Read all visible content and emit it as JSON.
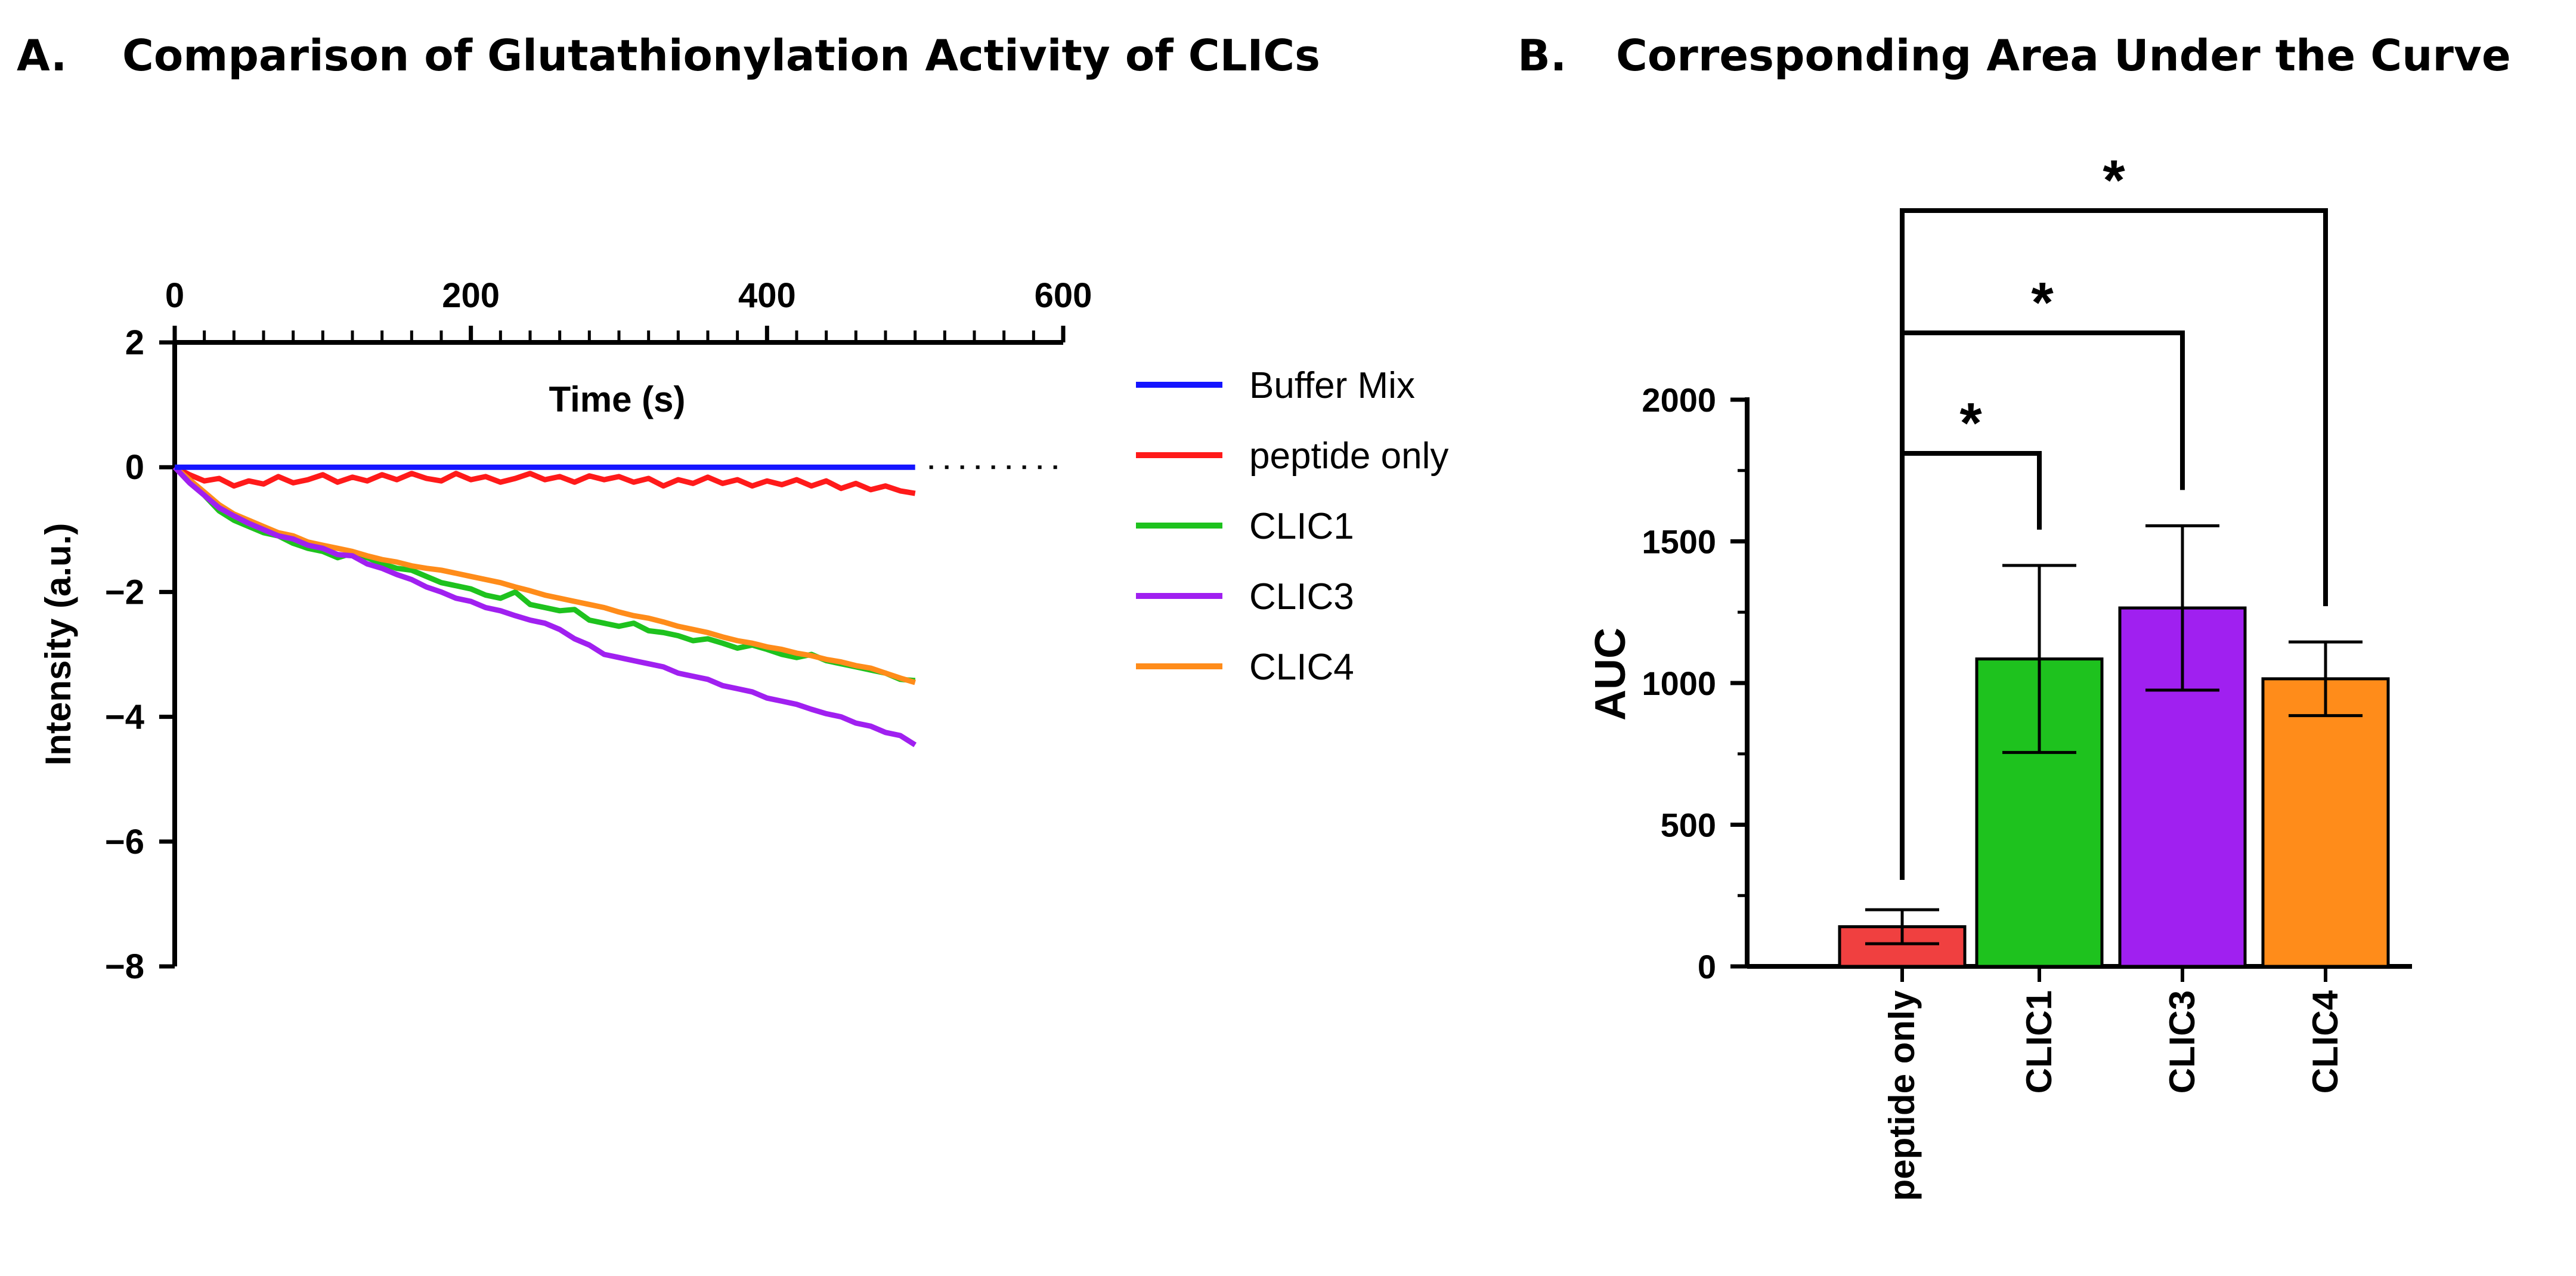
{
  "panels": {
    "a": {
      "letter": "A.",
      "title": "Comparison of Glutathionylation Activity of CLICs"
    },
    "b": {
      "letter": "B.",
      "title": "Corresponding Area Under the Curve"
    }
  },
  "chart_data": [
    {
      "type": "line",
      "title": "Comparison of Glutathionylation Activity of CLICs",
      "xlabel": "Time (s)",
      "ylabel": "Intensity (a.u.)",
      "xlim": [
        0,
        600
      ],
      "ylim": [
        -8,
        2
      ],
      "x_ticks": [
        0,
        200,
        400,
        600
      ],
      "y_ticks": [
        2,
        0,
        -2,
        -4,
        -6,
        -8
      ],
      "x_axis_position": "top",
      "series": [
        {
          "name": "Buffer Mix",
          "color": "#1414ff",
          "points": [
            [
              0,
              0
            ],
            [
              100,
              0
            ],
            [
              200,
              0
            ],
            [
              300,
              0
            ],
            [
              400,
              0
            ],
            [
              500,
              0
            ]
          ]
        },
        {
          "name": "peptide only",
          "color": "#ff1a1a",
          "points": [
            [
              0,
              0
            ],
            [
              10,
              -0.12
            ],
            [
              20,
              -0.22
            ],
            [
              30,
              -0.18
            ],
            [
              40,
              -0.3
            ],
            [
              50,
              -0.22
            ],
            [
              60,
              -0.27
            ],
            [
              70,
              -0.15
            ],
            [
              80,
              -0.25
            ],
            [
              90,
              -0.2
            ],
            [
              100,
              -0.12
            ],
            [
              110,
              -0.24
            ],
            [
              120,
              -0.16
            ],
            [
              130,
              -0.22
            ],
            [
              140,
              -0.12
            ],
            [
              150,
              -0.2
            ],
            [
              160,
              -0.1
            ],
            [
              170,
              -0.18
            ],
            [
              180,
              -0.22
            ],
            [
              190,
              -0.1
            ],
            [
              200,
              -0.2
            ],
            [
              210,
              -0.15
            ],
            [
              220,
              -0.24
            ],
            [
              230,
              -0.18
            ],
            [
              240,
              -0.1
            ],
            [
              250,
              -0.2
            ],
            [
              260,
              -0.15
            ],
            [
              270,
              -0.24
            ],
            [
              280,
              -0.14
            ],
            [
              290,
              -0.2
            ],
            [
              300,
              -0.15
            ],
            [
              310,
              -0.24
            ],
            [
              320,
              -0.18
            ],
            [
              330,
              -0.3
            ],
            [
              340,
              -0.2
            ],
            [
              350,
              -0.26
            ],
            [
              360,
              -0.16
            ],
            [
              370,
              -0.26
            ],
            [
              380,
              -0.2
            ],
            [
              390,
              -0.3
            ],
            [
              400,
              -0.22
            ],
            [
              410,
              -0.28
            ],
            [
              420,
              -0.2
            ],
            [
              430,
              -0.3
            ],
            [
              440,
              -0.22
            ],
            [
              450,
              -0.34
            ],
            [
              460,
              -0.26
            ],
            [
              470,
              -0.36
            ],
            [
              480,
              -0.3
            ],
            [
              490,
              -0.38
            ],
            [
              500,
              -0.42
            ]
          ]
        },
        {
          "name": "CLIC1",
          "color": "#1ec21e",
          "points": [
            [
              0,
              0
            ],
            [
              10,
              -0.2
            ],
            [
              20,
              -0.45
            ],
            [
              30,
              -0.7
            ],
            [
              40,
              -0.85
            ],
            [
              50,
              -0.95
            ],
            [
              60,
              -1.05
            ],
            [
              70,
              -1.1
            ],
            [
              80,
              -1.22
            ],
            [
              90,
              -1.3
            ],
            [
              100,
              -1.35
            ],
            [
              110,
              -1.45
            ],
            [
              120,
              -1.38
            ],
            [
              130,
              -1.45
            ],
            [
              140,
              -1.55
            ],
            [
              150,
              -1.62
            ],
            [
              160,
              -1.65
            ],
            [
              170,
              -1.75
            ],
            [
              180,
              -1.85
            ],
            [
              190,
              -1.9
            ],
            [
              200,
              -1.95
            ],
            [
              210,
              -2.05
            ],
            [
              220,
              -2.1
            ],
            [
              230,
              -2.0
            ],
            [
              240,
              -2.2
            ],
            [
              250,
              -2.25
            ],
            [
              260,
              -2.3
            ],
            [
              270,
              -2.28
            ],
            [
              280,
              -2.45
            ],
            [
              290,
              -2.5
            ],
            [
              300,
              -2.55
            ],
            [
              310,
              -2.5
            ],
            [
              320,
              -2.62
            ],
            [
              330,
              -2.65
            ],
            [
              340,
              -2.7
            ],
            [
              350,
              -2.78
            ],
            [
              360,
              -2.75
            ],
            [
              370,
              -2.82
            ],
            [
              380,
              -2.9
            ],
            [
              390,
              -2.85
            ],
            [
              400,
              -2.92
            ],
            [
              410,
              -3.0
            ],
            [
              420,
              -3.05
            ],
            [
              430,
              -3.0
            ],
            [
              440,
              -3.1
            ],
            [
              450,
              -3.15
            ],
            [
              460,
              -3.2
            ],
            [
              470,
              -3.25
            ],
            [
              480,
              -3.3
            ],
            [
              490,
              -3.4
            ],
            [
              500,
              -3.42
            ]
          ]
        },
        {
          "name": "CLIC3",
          "color": "#a020f0",
          "points": [
            [
              0,
              0
            ],
            [
              10,
              -0.25
            ],
            [
              20,
              -0.45
            ],
            [
              30,
              -0.65
            ],
            [
              40,
              -0.78
            ],
            [
              50,
              -0.9
            ],
            [
              60,
              -1.0
            ],
            [
              70,
              -1.1
            ],
            [
              80,
              -1.15
            ],
            [
              90,
              -1.25
            ],
            [
              100,
              -1.3
            ],
            [
              110,
              -1.4
            ],
            [
              120,
              -1.42
            ],
            [
              130,
              -1.55
            ],
            [
              140,
              -1.62
            ],
            [
              150,
              -1.72
            ],
            [
              160,
              -1.8
            ],
            [
              170,
              -1.92
            ],
            [
              180,
              -2.0
            ],
            [
              190,
              -2.1
            ],
            [
              200,
              -2.15
            ],
            [
              210,
              -2.25
            ],
            [
              220,
              -2.3
            ],
            [
              230,
              -2.38
            ],
            [
              240,
              -2.45
            ],
            [
              250,
              -2.5
            ],
            [
              260,
              -2.6
            ],
            [
              270,
              -2.75
            ],
            [
              280,
              -2.85
            ],
            [
              290,
              -3.0
            ],
            [
              300,
              -3.05
            ],
            [
              310,
              -3.1
            ],
            [
              320,
              -3.15
            ],
            [
              330,
              -3.2
            ],
            [
              340,
              -3.3
            ],
            [
              350,
              -3.35
            ],
            [
              360,
              -3.4
            ],
            [
              370,
              -3.5
            ],
            [
              380,
              -3.55
            ],
            [
              390,
              -3.6
            ],
            [
              400,
              -3.7
            ],
            [
              410,
              -3.75
            ],
            [
              420,
              -3.8
            ],
            [
              430,
              -3.88
            ],
            [
              440,
              -3.95
            ],
            [
              450,
              -4.0
            ],
            [
              460,
              -4.1
            ],
            [
              470,
              -4.15
            ],
            [
              480,
              -4.25
            ],
            [
              490,
              -4.3
            ],
            [
              500,
              -4.45
            ]
          ]
        },
        {
          "name": "CLIC4",
          "color": "#ff8c1a",
          "points": [
            [
              0,
              0
            ],
            [
              10,
              -0.2
            ],
            [
              20,
              -0.4
            ],
            [
              30,
              -0.6
            ],
            [
              40,
              -0.75
            ],
            [
              50,
              -0.85
            ],
            [
              60,
              -0.95
            ],
            [
              70,
              -1.05
            ],
            [
              80,
              -1.1
            ],
            [
              90,
              -1.2
            ],
            [
              100,
              -1.25
            ],
            [
              110,
              -1.3
            ],
            [
              120,
              -1.35
            ],
            [
              130,
              -1.42
            ],
            [
              140,
              -1.48
            ],
            [
              150,
              -1.52
            ],
            [
              160,
              -1.58
            ],
            [
              170,
              -1.62
            ],
            [
              180,
              -1.65
            ],
            [
              190,
              -1.7
            ],
            [
              200,
              -1.75
            ],
            [
              210,
              -1.8
            ],
            [
              220,
              -1.85
            ],
            [
              230,
              -1.92
            ],
            [
              240,
              -1.98
            ],
            [
              250,
              -2.05
            ],
            [
              260,
              -2.1
            ],
            [
              270,
              -2.15
            ],
            [
              280,
              -2.2
            ],
            [
              290,
              -2.25
            ],
            [
              300,
              -2.32
            ],
            [
              310,
              -2.38
            ],
            [
              320,
              -2.42
            ],
            [
              330,
              -2.48
            ],
            [
              340,
              -2.55
            ],
            [
              350,
              -2.6
            ],
            [
              360,
              -2.65
            ],
            [
              370,
              -2.72
            ],
            [
              380,
              -2.78
            ],
            [
              390,
              -2.82
            ],
            [
              400,
              -2.88
            ],
            [
              410,
              -2.92
            ],
            [
              420,
              -2.98
            ],
            [
              430,
              -3.02
            ],
            [
              440,
              -3.08
            ],
            [
              450,
              -3.12
            ],
            [
              460,
              -3.18
            ],
            [
              470,
              -3.22
            ],
            [
              480,
              -3.3
            ],
            [
              490,
              -3.38
            ],
            [
              500,
              -3.45
            ]
          ]
        }
      ],
      "dotted_continuation": {
        "from_x": 500,
        "to_x": 600,
        "y": 0
      }
    },
    {
      "type": "bar",
      "title": "Corresponding Area Under the Curve",
      "xlabel": "",
      "ylabel": "AUC",
      "ylim": [
        0,
        2000
      ],
      "y_ticks": [
        0,
        500,
        1000,
        1500,
        2000
      ],
      "categories": [
        "peptide only",
        "CLIC1",
        "CLIC3",
        "CLIC4"
      ],
      "values": [
        140,
        1085,
        1265,
        1015
      ],
      "errors": [
        60,
        330,
        290,
        130
      ],
      "colors": [
        "#f04040",
        "#1ec21e",
        "#a020f0",
        "#ff8c1a"
      ],
      "significance": [
        {
          "from": "peptide only",
          "to": "CLIC1",
          "label": "*"
        },
        {
          "from": "peptide only",
          "to": "CLIC3",
          "label": "*"
        },
        {
          "from": "peptide only",
          "to": "CLIC4",
          "label": "*"
        }
      ]
    }
  ]
}
